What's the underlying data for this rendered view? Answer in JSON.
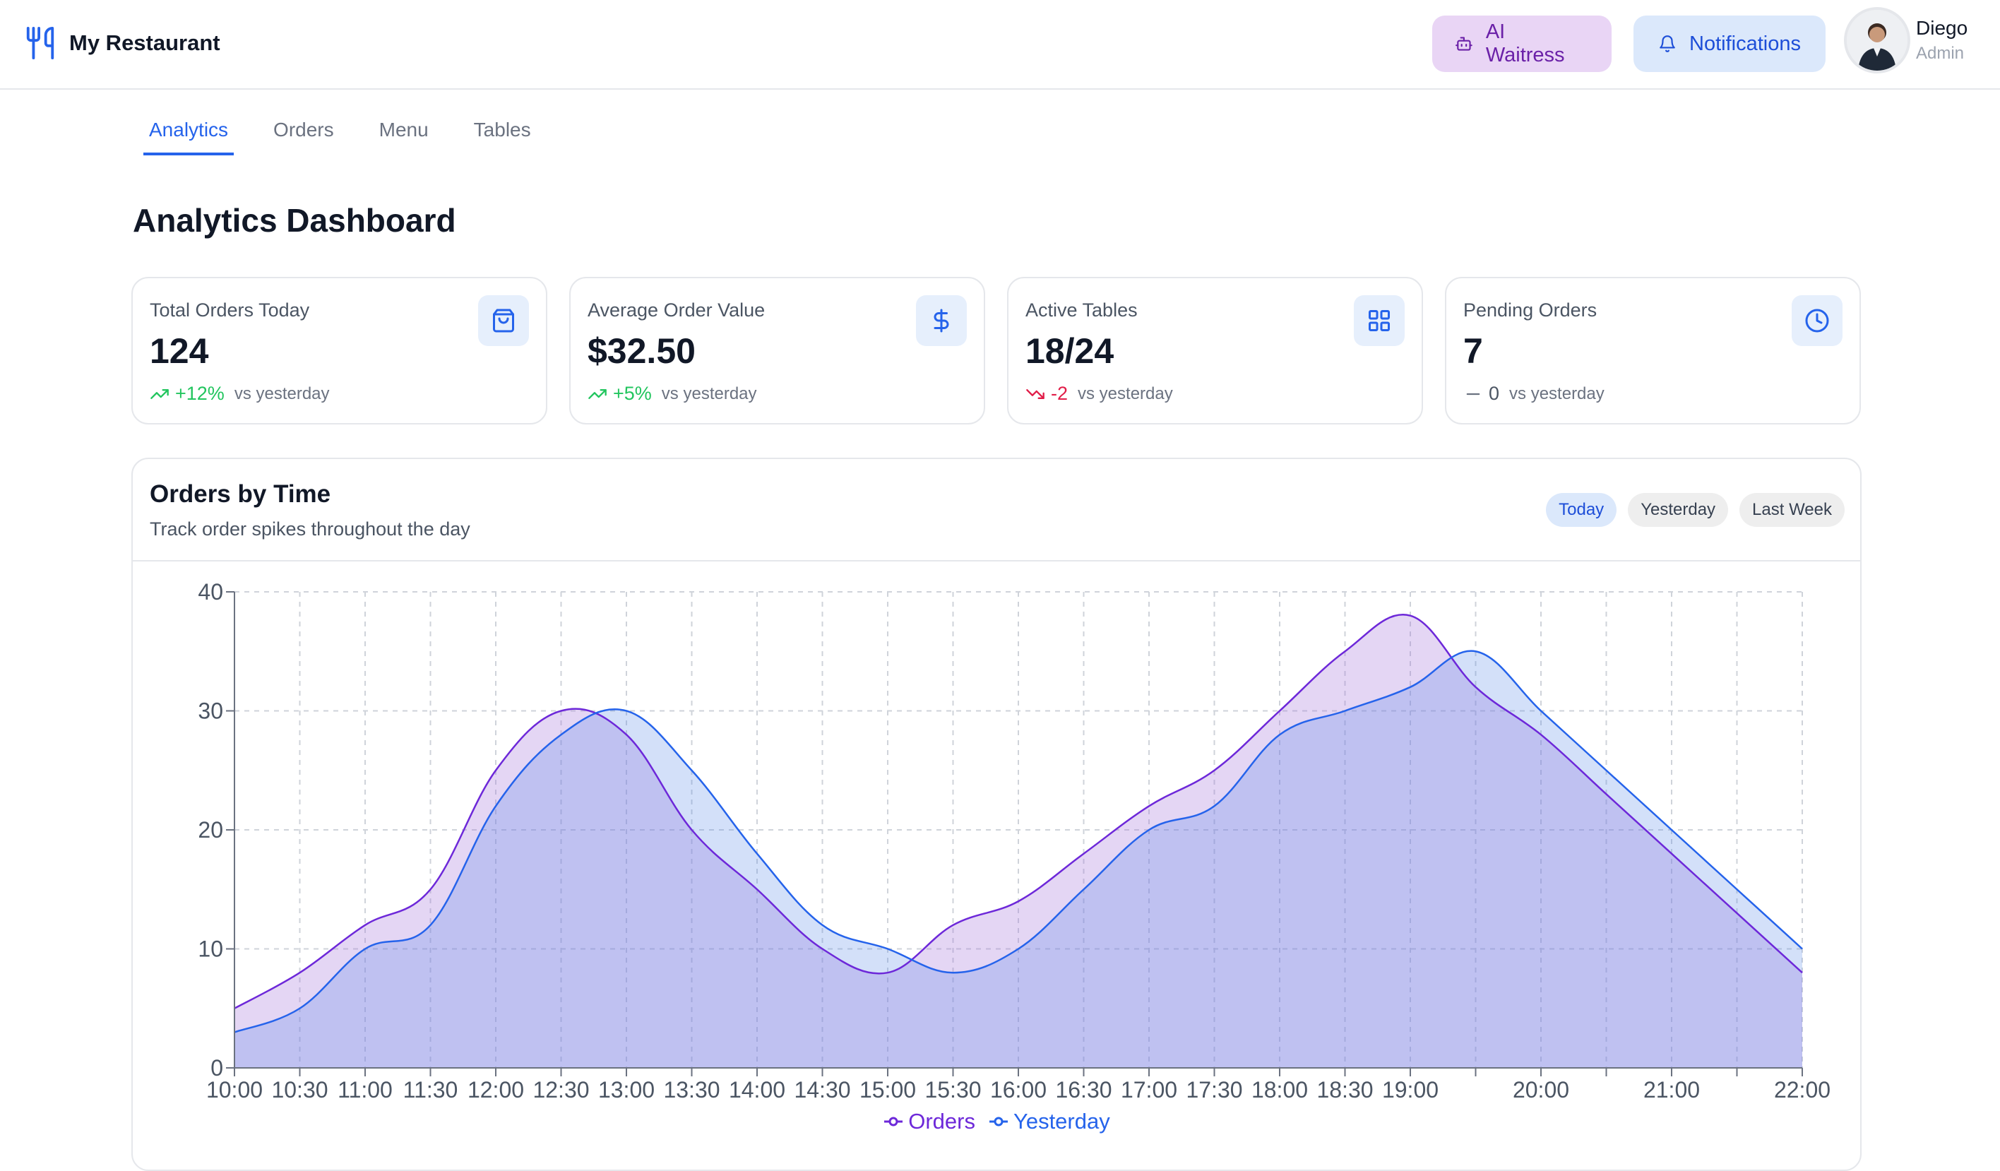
{
  "header": {
    "brand": "My Restaurant",
    "ai_button": "AI Waitress",
    "notifications_button": "Notifications",
    "user_name": "Diego",
    "user_role": "Admin"
  },
  "tabs": [
    {
      "label": "Analytics",
      "active": true
    },
    {
      "label": "Orders",
      "active": false
    },
    {
      "label": "Menu",
      "active": false
    },
    {
      "label": "Tables",
      "active": false
    }
  ],
  "page_title": "Analytics Dashboard",
  "stats": [
    {
      "label": "Total Orders Today",
      "value": "124",
      "change": "+12%",
      "trend": "up",
      "note": "vs yesterday",
      "icon": "shopping-bag-icon"
    },
    {
      "label": "Average Order Value",
      "value": "$32.50",
      "change": "+5%",
      "trend": "up",
      "note": "vs yesterday",
      "icon": "dollar-icon"
    },
    {
      "label": "Active Tables",
      "value": "18/24",
      "change": "-2",
      "trend": "down",
      "note": "vs yesterday",
      "icon": "grid-icon"
    },
    {
      "label": "Pending Orders",
      "value": "7",
      "change": "0",
      "trend": "flat",
      "note": "vs yesterday",
      "icon": "clock-icon"
    }
  ],
  "colors": {
    "up": "#22c55e",
    "down": "#e11d48",
    "flat": "#6b7280",
    "orders": "#6d28d9",
    "yesterday": "#2563eb",
    "accent": "#2563eb"
  },
  "chart": {
    "title": "Orders by Time",
    "subtitle": "Track order spikes throughout the day",
    "ranges": [
      {
        "label": "Today",
        "active": true
      },
      {
        "label": "Yesterday",
        "active": false
      },
      {
        "label": "Last Week",
        "active": false
      }
    ]
  },
  "chart_data": {
    "type": "area",
    "x": [
      "10:00",
      "10:30",
      "11:00",
      "11:30",
      "12:00",
      "12:30",
      "13:00",
      "13:30",
      "14:00",
      "14:30",
      "15:00",
      "15:30",
      "16:00",
      "16:30",
      "17:00",
      "17:30",
      "18:00",
      "18:30",
      "19:00",
      "19:30",
      "20:00",
      "20:30",
      "21:00",
      "21:30",
      "22:00"
    ],
    "x_tick_labels": [
      "10:00",
      "10:30",
      "11:00",
      "11:30",
      "12:00",
      "12:30",
      "13:00",
      "13:30",
      "14:00",
      "14:30",
      "15:00",
      "15:30",
      "16:00",
      "16:30",
      "17:00",
      "17:30",
      "18:00",
      "18:30",
      "19:00",
      "20:00",
      "21:00",
      "22:00"
    ],
    "series": [
      {
        "name": "Orders",
        "values": [
          5,
          8,
          12,
          15,
          25,
          30,
          28,
          20,
          15,
          10,
          8,
          12,
          14,
          18,
          22,
          25,
          30,
          35,
          38,
          32,
          28,
          23,
          18,
          13,
          8
        ]
      },
      {
        "name": "Yesterday",
        "values": [
          3,
          5,
          10,
          12,
          22,
          28,
          30,
          25,
          18,
          12,
          10,
          8,
          10,
          15,
          20,
          22,
          28,
          30,
          32,
          35,
          30,
          25,
          20,
          15,
          10
        ]
      }
    ],
    "ylim": [
      0,
      40
    ],
    "y_ticks": [
      0,
      10,
      20,
      30,
      40
    ],
    "grid": true,
    "legend": "bottom-center"
  }
}
